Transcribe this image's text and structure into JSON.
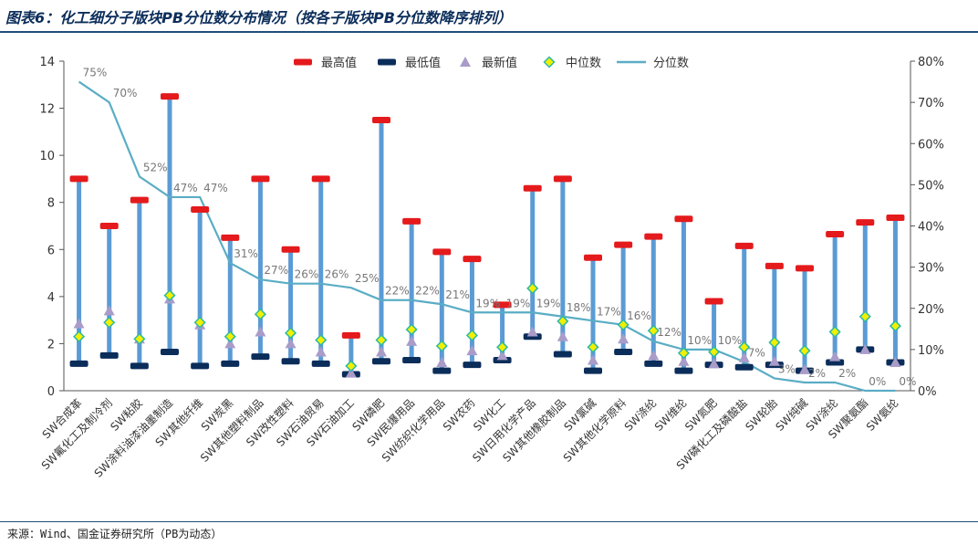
{
  "title": "图表6：化工细分子版块PB分位数分布情况（按各子版块PB分位数降序排列）",
  "source": "来源：Wind、国金证券研究所（PB为动态）",
  "chart_data": {
    "type": "boxplot-line",
    "categories": [
      "SW合成革",
      "SW氟化工及制冷剂",
      "SW粘胶",
      "SW涂料油漆油墨制造",
      "SW其他纤维",
      "SW炭黑",
      "SW其他塑料制品",
      "SW改性塑料",
      "SW石油贸易",
      "SW石油加工",
      "SW磷肥",
      "SW民爆用品",
      "SW纺织化学用品",
      "SW农药",
      "SW化工",
      "SW日用化学产品",
      "SW其他橡胶制品",
      "SW氯碱",
      "SW其他化学原料",
      "SW涤纶",
      "SW维纶",
      "SW氮肥",
      "SW磷化工及磷酸盐",
      "SW轮胎",
      "SW纯碱",
      "SW涂纶",
      "SW聚氨酯",
      "SW氨纶"
    ],
    "series": [
      {
        "name": "最高值",
        "values": [
          9.0,
          7.0,
          8.1,
          12.5,
          7.7,
          6.5,
          9.0,
          6.0,
          9.0,
          2.35,
          11.5,
          7.2,
          5.9,
          5.6,
          3.65,
          8.6,
          9.0,
          5.65,
          6.2,
          6.55,
          7.3,
          3.8,
          6.15,
          5.3,
          5.2,
          6.65,
          7.15,
          7.35
        ]
      },
      {
        "name": "最低值",
        "values": [
          1.15,
          1.5,
          1.05,
          1.65,
          1.05,
          1.15,
          1.45,
          1.25,
          1.15,
          0.7,
          1.25,
          1.3,
          0.85,
          1.1,
          1.3,
          2.3,
          1.55,
          0.85,
          1.65,
          1.15,
          0.85,
          1.1,
          1.0,
          1.1,
          0.85,
          1.2,
          1.75,
          1.2
        ]
      },
      {
        "name": "最新值",
        "values": [
          2.85,
          3.4,
          2.2,
          3.9,
          2.8,
          2.0,
          2.5,
          2.0,
          1.65,
          0.75,
          1.65,
          2.1,
          1.2,
          1.7,
          1.5,
          2.5,
          2.3,
          1.3,
          2.2,
          1.5,
          1.25,
          1.15,
          1.4,
          1.25,
          0.9,
          1.45,
          1.75,
          1.2
        ]
      },
      {
        "name": "中位数",
        "values": [
          2.3,
          2.9,
          2.2,
          4.05,
          2.9,
          2.3,
          3.25,
          2.45,
          2.15,
          1.05,
          2.15,
          2.6,
          1.9,
          2.35,
          1.85,
          4.35,
          2.95,
          1.85,
          2.8,
          2.55,
          1.6,
          1.65,
          1.85,
          2.05,
          1.7,
          2.5,
          3.15,
          2.75
        ]
      },
      {
        "name": "分位数",
        "axis": "right",
        "values": [
          75,
          70,
          52,
          47,
          47,
          31,
          27,
          26,
          26,
          25,
          22,
          22,
          21,
          19,
          19,
          19,
          18,
          17,
          16,
          12,
          10,
          10,
          7,
          3,
          2,
          2,
          0,
          0
        ],
        "labels": [
          "75%",
          "70%",
          "52%",
          "47%",
          "47%",
          "31%",
          "27%",
          "26%",
          "26%",
          "25%",
          "22%",
          "22%",
          "21%",
          "19%",
          "19%",
          "19%",
          "18%",
          "17%",
          "16%",
          "12%",
          "10%",
          "10%",
          "7%",
          "3%",
          "2%",
          "2%",
          "0%",
          "0%"
        ]
      }
    ],
    "left_axis": {
      "min": 0,
      "max": 14,
      "ticks": [
        "0",
        "2",
        "4",
        "6",
        "8",
        "10",
        "12",
        "14"
      ]
    },
    "right_axis": {
      "min": 0,
      "max": 80,
      "ticks": [
        "0%",
        "10%",
        "20%",
        "30%",
        "40%",
        "50%",
        "60%",
        "70%",
        "80%"
      ]
    },
    "legend_position": "top",
    "colors": {
      "max": "#e41a1c",
      "min": "#0b2d5a",
      "latest": "#a99cc9",
      "median_fill": "#f0f000",
      "median_stroke": "#2bb8a8",
      "bar": "#5b9bd5",
      "line": "#5aadc4"
    }
  }
}
